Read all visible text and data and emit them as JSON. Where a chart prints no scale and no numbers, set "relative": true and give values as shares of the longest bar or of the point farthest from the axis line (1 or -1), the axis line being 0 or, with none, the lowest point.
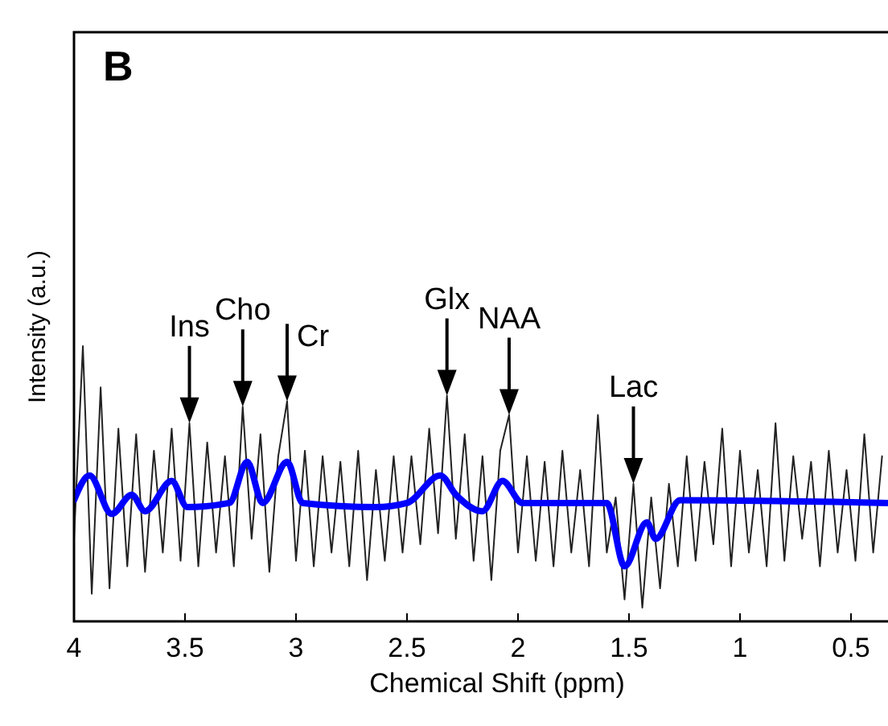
{
  "chart_data": {
    "type": "line",
    "title": "B",
    "xlabel": "Chemical Shift (ppm)",
    "ylabel": "Intensity (a.u.)",
    "relative": true,
    "xlim": [
      4,
      0.33
    ],
    "xticks": [
      4,
      3.5,
      3,
      2.5,
      2,
      1.5,
      1,
      0.5
    ],
    "grid": false,
    "marker": "none",
    "line_style": "solid",
    "x": [
      4,
      3.96,
      3.92,
      3.88,
      3.84,
      3.8,
      3.76,
      3.72,
      3.68,
      3.64,
      3.6,
      3.56,
      3.52,
      3.48,
      3.44,
      3.4,
      3.36,
      3.32,
      3.28,
      3.24,
      3.2,
      3.16,
      3.12,
      3.08,
      3.04,
      3,
      2.96,
      2.92,
      2.88,
      2.84,
      2.8,
      2.76,
      2.72,
      2.68,
      2.64,
      2.6,
      2.56,
      2.52,
      2.48,
      2.44,
      2.4,
      2.36,
      2.32,
      2.28,
      2.24,
      2.2,
      2.16,
      2.12,
      2.08,
      2.04,
      2,
      1.96,
      1.92,
      1.88,
      1.84,
      1.8,
      1.76,
      1.72,
      1.68,
      1.64,
      1.6,
      1.56,
      1.52,
      1.48,
      1.44,
      1.4,
      1.36,
      1.32,
      1.28,
      1.24,
      1.2,
      1.16,
      1.12,
      1.08,
      1.04,
      1,
      0.96,
      0.92,
      0.88,
      0.84,
      0.8,
      0.76,
      0.72,
      0.68,
      0.64,
      0.6,
      0.56,
      0.52,
      0.48,
      0.44,
      0.4,
      0.36
    ],
    "series": [
      {
        "color": "#222222",
        "values": [
          0.3,
          1.0,
          0.1,
          0.85,
          0.12,
          0.7,
          0.2,
          0.68,
          0.18,
          0.62,
          0.25,
          0.7,
          0.22,
          0.72,
          0.2,
          0.65,
          0.25,
          0.6,
          0.2,
          0.78,
          0.3,
          0.68,
          0.18,
          0.6,
          0.8,
          0.22,
          0.62,
          0.2,
          0.6,
          0.25,
          0.58,
          0.2,
          0.62,
          0.15,
          0.55,
          0.22,
          0.6,
          0.25,
          0.6,
          0.28,
          0.7,
          0.32,
          0.82,
          0.3,
          0.68,
          0.22,
          0.6,
          0.15,
          0.62,
          0.75,
          0.25,
          0.6,
          0.22,
          0.58,
          0.2,
          0.62,
          0.25,
          0.55,
          0.2,
          0.75,
          0.25,
          0.45,
          0.08,
          0.5,
          0.05,
          0.45,
          0.12,
          0.5,
          0.2,
          0.6,
          0.22,
          0.58,
          0.28,
          0.7,
          0.2,
          0.62,
          0.25,
          0.55,
          0.2,
          0.72,
          0.22,
          0.6,
          0.3,
          0.58,
          0.2,
          0.62,
          0.25,
          0.55,
          0.22,
          0.68,
          0.25,
          0.6
        ]
      },
      {
        "color": "#0000ff",
        "x": [
          4,
          3.93,
          3.83,
          3.74,
          3.68,
          3.56,
          3.49,
          3.3,
          3.22,
          3.15,
          3.04,
          2.97,
          2.64,
          2.5,
          2.35,
          2.28,
          2.16,
          2.07,
          1.98,
          1.6,
          1.52,
          1.42,
          1.38,
          1.27,
          0.33
        ],
        "values": [
          0.44,
          0.53,
          0.39,
          0.46,
          0.4,
          0.51,
          0.415,
          0.43,
          0.58,
          0.43,
          0.58,
          0.43,
          0.415,
          0.43,
          0.53,
          0.46,
          0.4,
          0.51,
          0.43,
          0.43,
          0.2,
          0.36,
          0.3,
          0.44,
          0.43
        ]
      }
    ],
    "annotations": [
      {
        "text": "Ins",
        "x": 3.48,
        "y": 0.72
      },
      {
        "text": "Cho",
        "x": 3.24,
        "y": 0.78
      },
      {
        "text": "Cr",
        "x": 3.04,
        "y": 0.8
      },
      {
        "text": "Glx",
        "x": 2.32,
        "y": 0.82
      },
      {
        "text": "NAA",
        "x": 2.04,
        "y": 0.75
      },
      {
        "text": "Lac",
        "x": 1.48,
        "y": 0.5
      }
    ]
  }
}
